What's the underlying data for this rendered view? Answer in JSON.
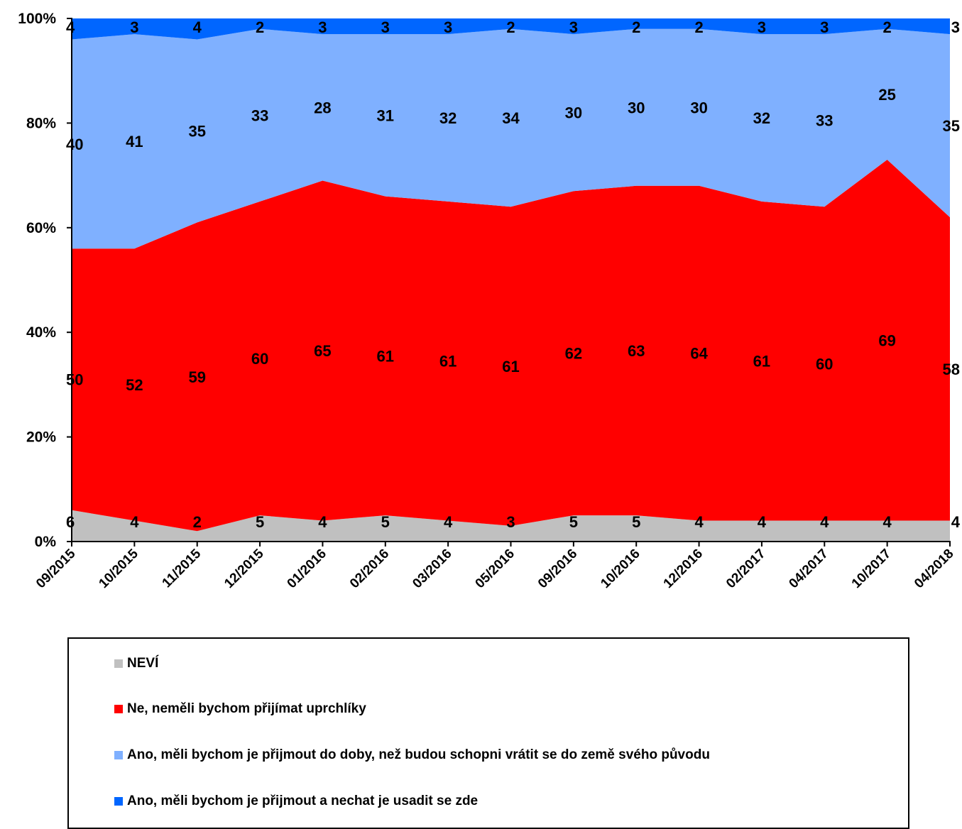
{
  "chart_data": {
    "type": "area",
    "stacked": "percent",
    "categories": [
      "09/2015",
      "10/2015",
      "11/2015",
      "12/2015",
      "01/2016",
      "02/2016",
      "03/2016",
      "05/2016",
      "09/2016",
      "10/2016",
      "12/2016",
      "02/2017",
      "04/2017",
      "10/2017",
      "04/2018"
    ],
    "y_ticks": [
      "0%",
      "20%",
      "40%",
      "60%",
      "80%",
      "100%"
    ],
    "ylim": [
      0,
      100
    ],
    "legend_position": "bottom",
    "series": [
      {
        "name": "NEVÍ",
        "color": "#c0c0c0",
        "values": [
          6,
          4,
          2,
          5,
          4,
          5,
          4,
          3,
          5,
          5,
          4,
          4,
          4,
          4,
          4
        ]
      },
      {
        "name": "Ne, neměli bychom přijímat uprchlíky",
        "color": "#ff0000",
        "values": [
          50,
          52,
          59,
          60,
          65,
          61,
          61,
          61,
          62,
          63,
          64,
          61,
          60,
          69,
          58
        ]
      },
      {
        "name": "Ano, měli bychom je přijmout do doby, než budou schopni vrátit se do země svého původu",
        "color": "#7fb0ff",
        "values": [
          40,
          41,
          35,
          33,
          28,
          31,
          32,
          34,
          30,
          30,
          30,
          32,
          33,
          25,
          35
        ]
      },
      {
        "name": "Ano, měli bychom je přijmout a nechat je usadit se zde",
        "color": "#0066ff",
        "values": [
          4,
          3,
          4,
          2,
          3,
          3,
          3,
          2,
          3,
          2,
          2,
          3,
          3,
          2,
          3
        ]
      }
    ]
  }
}
